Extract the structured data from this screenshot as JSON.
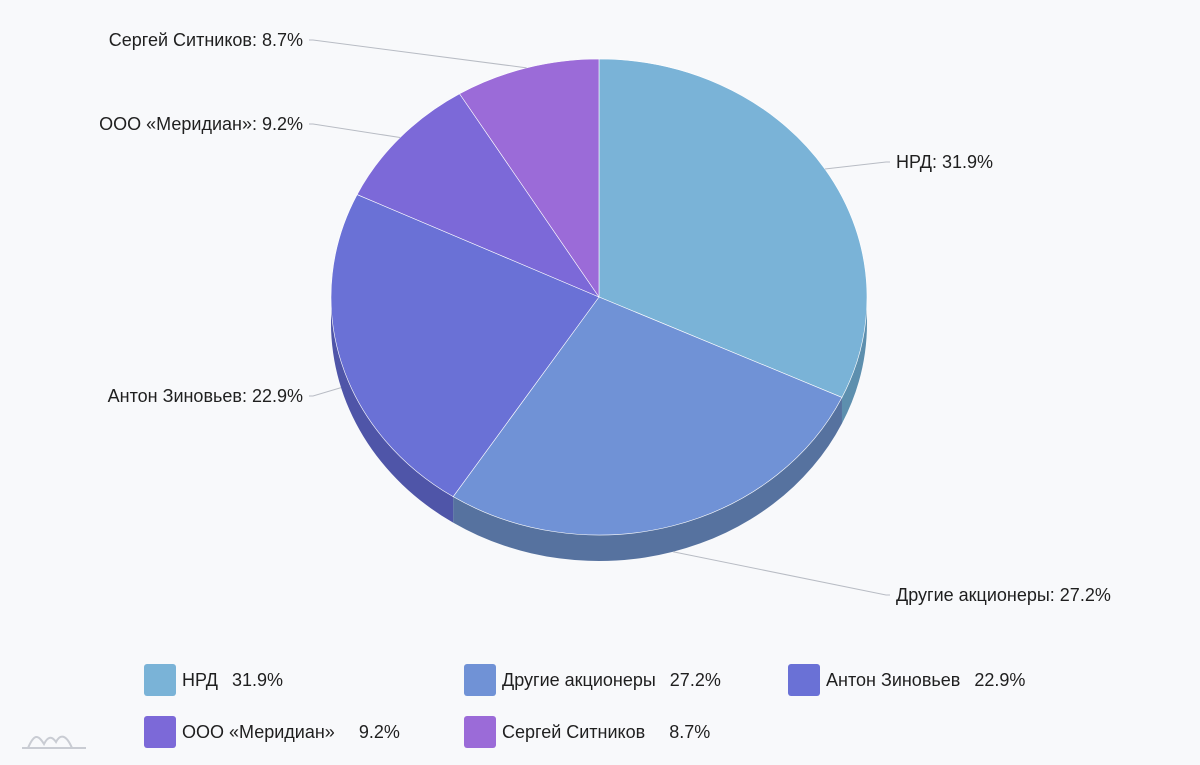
{
  "chart_data": {
    "type": "pie",
    "title": "",
    "slices": [
      {
        "name": "НРД",
        "value": 31.9,
        "label": "НРД: 31.9%",
        "legend_value": "31.9%",
        "color": "#7ab3d7",
        "side": "#5d8fae"
      },
      {
        "name": "Другие акционеры",
        "value": 27.2,
        "label": "Другие акционеры: 27.2%",
        "legend_value": "27.2%",
        "color": "#7092d6",
        "side": "#56729f"
      },
      {
        "name": "Антон Зиновьев",
        "value": 22.9,
        "label": "Антон Зиновьев: 22.9%",
        "legend_value": "22.9%",
        "color": "#6a71d6",
        "side": "#4f55a8"
      },
      {
        "name": "ООО «Меридиан»",
        "value": 9.2,
        "label": "ООО «Меридиан»: 9.2%",
        "legend_value": "9.2%",
        "color": "#7c69d8",
        "side": "#5d4fa8"
      },
      {
        "name": "Сергей Ситников",
        "value": 8.7,
        "label": "Сергей Ситников: 8.7%",
        "legend_value": "8.7%",
        "color": "#9b6bd8",
        "side": "#7650ab"
      }
    ],
    "legend_placement": "bottom",
    "style": "3d-tilted"
  }
}
